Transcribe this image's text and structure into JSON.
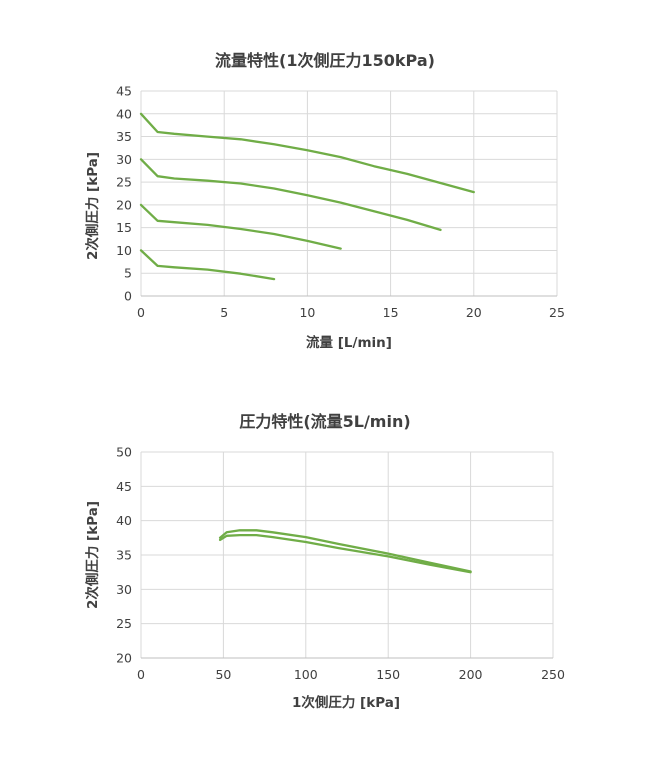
{
  "chart_data": [
    {
      "type": "line",
      "title": "流量特性(1次側圧力150kPa)",
      "xlabel": "流量 [L/min]",
      "ylabel": "2次側圧力 [kPa]",
      "xlim": [
        0,
        25
      ],
      "ylim": [
        0,
        45
      ],
      "xticks": [
        0,
        5,
        10,
        15,
        20,
        25
      ],
      "yticks": [
        0,
        5,
        10,
        15,
        20,
        25,
        30,
        35,
        40,
        45
      ],
      "grid": true,
      "color": "#70ad47",
      "series": [
        {
          "x": [
            0,
            1,
            2,
            4,
            6,
            8,
            10,
            12,
            14,
            16,
            18,
            20
          ],
          "y": [
            40,
            36,
            35.6,
            35,
            34.4,
            33.3,
            32,
            30.5,
            28.5,
            26.8,
            24.8,
            22.8
          ]
        },
        {
          "x": [
            0,
            1,
            2,
            4,
            6,
            8,
            10,
            12,
            14,
            16,
            18
          ],
          "y": [
            30,
            26.3,
            25.8,
            25.3,
            24.7,
            23.6,
            22.1,
            20.5,
            18.6,
            16.7,
            14.5
          ]
        },
        {
          "x": [
            0,
            1,
            2,
            4,
            6,
            8,
            10,
            12
          ],
          "y": [
            20,
            16.5,
            16.2,
            15.6,
            14.7,
            13.6,
            12.1,
            10.4
          ]
        },
        {
          "x": [
            0,
            1,
            2,
            4,
            6,
            8
          ],
          "y": [
            10,
            6.6,
            6.3,
            5.8,
            4.9,
            3.7
          ]
        }
      ]
    },
    {
      "type": "line",
      "title": "圧力特性(流量5L/min)",
      "xlabel": "1次側圧力 [kPa]",
      "ylabel": "2次側圧力 [kPa]",
      "xlim": [
        0,
        250
      ],
      "ylim": [
        20,
        50
      ],
      "xticks": [
        0,
        50,
        100,
        150,
        200,
        250
      ],
      "yticks": [
        20,
        25,
        30,
        35,
        40,
        45,
        50
      ],
      "grid": true,
      "color": "#70ad47",
      "series": [
        {
          "x": [
            48,
            52,
            60,
            70,
            80,
            100,
            120,
            150,
            175,
            200
          ],
          "y": [
            37.5,
            38.3,
            38.6,
            38.6,
            38.3,
            37.6,
            36.6,
            35.2,
            33.9,
            32.6
          ]
        },
        {
          "x": [
            48,
            52,
            60,
            70,
            80,
            100,
            120,
            150,
            175,
            200
          ],
          "y": [
            37.2,
            37.8,
            37.9,
            37.9,
            37.6,
            36.9,
            36.0,
            34.8,
            33.6,
            32.5
          ]
        }
      ]
    }
  ]
}
